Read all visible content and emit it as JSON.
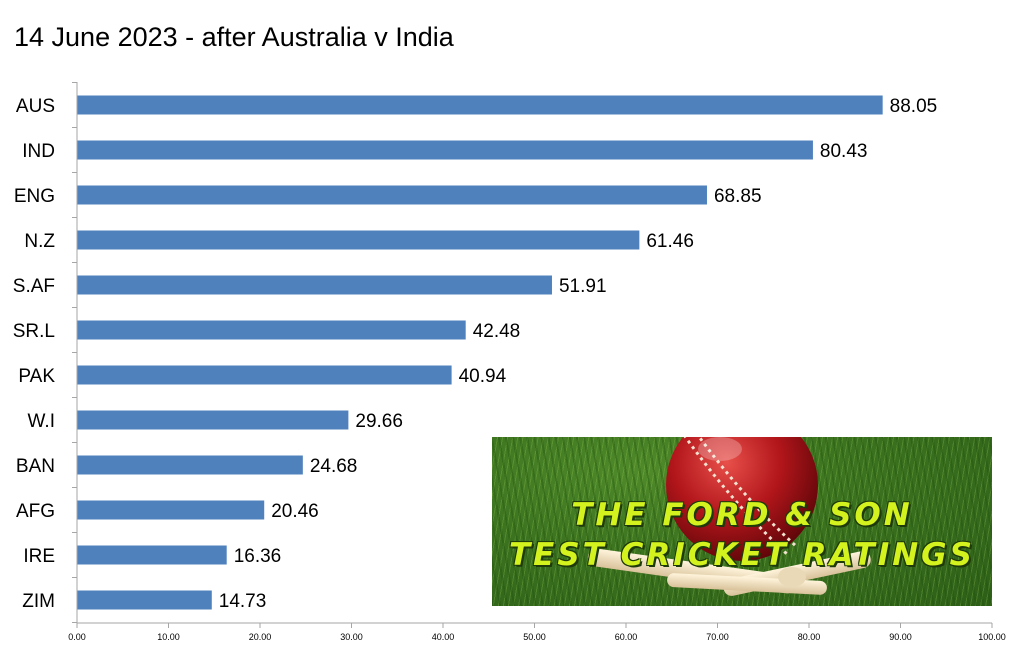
{
  "chart_data": {
    "type": "bar",
    "orientation": "horizontal",
    "title": "14 June 2023 - after Australia v India",
    "categories": [
      "AUS",
      "IND",
      "ENG",
      "N.Z",
      "S.AF",
      "SR.L",
      "PAK",
      "W.I",
      "BAN",
      "AFG",
      "IRE",
      "ZIM"
    ],
    "values": [
      88.05,
      80.43,
      68.85,
      61.46,
      51.91,
      42.48,
      40.94,
      29.66,
      24.68,
      20.46,
      16.36,
      14.73
    ],
    "value_labels": [
      "88.05",
      "80.43",
      "68.85",
      "61.46",
      "51.91",
      "42.48",
      "40.94",
      "29.66",
      "24.68",
      "20.46",
      "16.36",
      "14.73"
    ],
    "xlim": [
      0,
      100
    ],
    "xticks": [
      "0.00",
      "10.00",
      "20.00",
      "30.00",
      "40.00",
      "50.00",
      "60.00",
      "70.00",
      "80.00",
      "90.00",
      "100.00"
    ],
    "grid": false,
    "bar_color": "#4f81bd"
  },
  "logo": {
    "line1": "THE FORD & SON",
    "line2": "TEST CRICKET RATINGS"
  }
}
